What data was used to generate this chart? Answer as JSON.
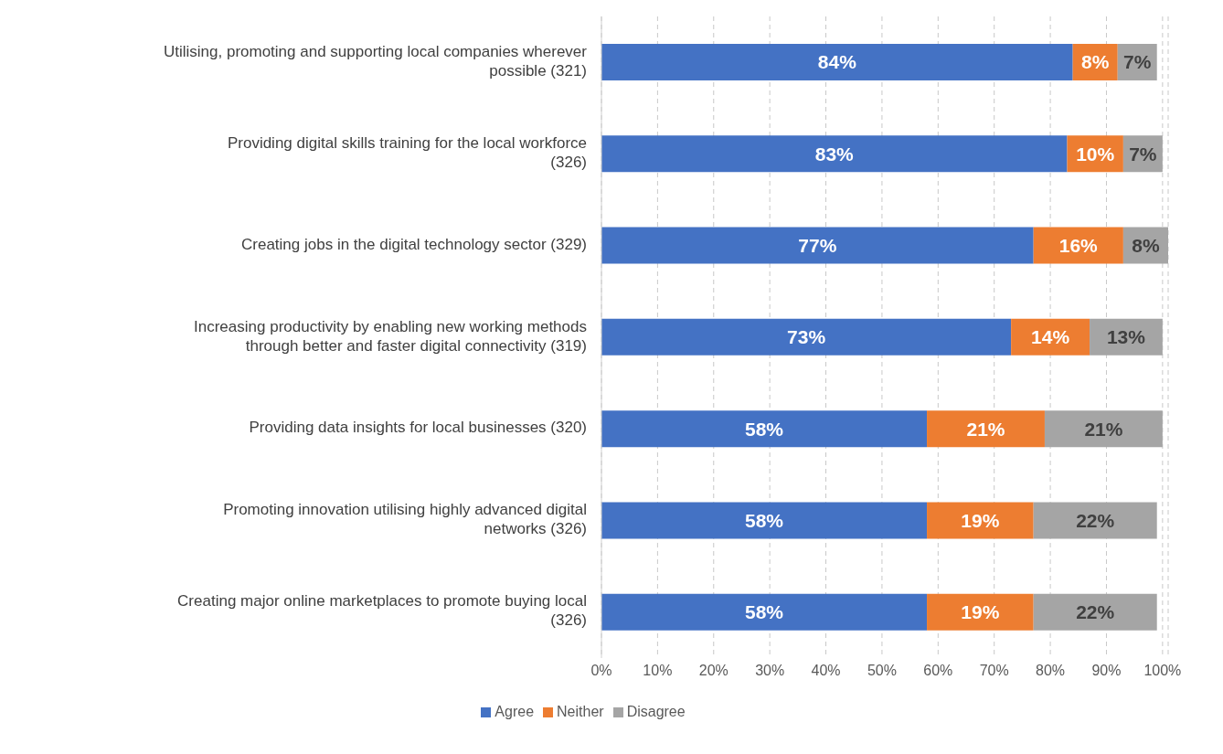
{
  "chart_data": {
    "type": "bar",
    "orientation": "horizontal",
    "stacked": true,
    "categories": [
      "Utilising, promoting and supporting local companies wherever possible (321)",
      "Providing digital skills training for the local workforce (326)",
      "Creating jobs in the digital technology sector (329)",
      "Increasing productivity by enabling new working methods through better and faster digital connectivity (319)",
      "Providing data insights for local businesses (320)",
      "Promoting innovation utilising highly advanced digital networks (326)",
      "Creating major online marketplaces to promote buying local (326)"
    ],
    "series": [
      {
        "name": "Agree",
        "color": "#4472c4",
        "values": [
          84,
          83,
          77,
          73,
          58,
          58,
          58
        ],
        "value_labels": [
          "84%",
          "83%",
          "77%",
          "73%",
          "58%",
          "58%",
          "58%"
        ]
      },
      {
        "name": "Neither",
        "color": "#ed7d31",
        "values": [
          8,
          10,
          16,
          14,
          21,
          19,
          19
        ],
        "value_labels": [
          "8%",
          "10%",
          "16%",
          "14%",
          "21%",
          "19%",
          "19%"
        ]
      },
      {
        "name": "Disagree",
        "color": "#a5a5a5",
        "values": [
          7,
          7,
          8,
          13,
          21,
          22,
          22
        ],
        "value_labels": [
          "7%",
          "7%",
          "8%",
          "13%",
          "21%",
          "22%",
          "22%"
        ]
      }
    ],
    "xlim": [
      0,
      101
    ],
    "xticks": [
      {
        "value": 0,
        "label": "0%"
      },
      {
        "value": 10,
        "label": "10%"
      },
      {
        "value": 20,
        "label": "20%"
      },
      {
        "value": 30,
        "label": "30%"
      },
      {
        "value": 40,
        "label": "40%"
      },
      {
        "value": 50,
        "label": "50%"
      },
      {
        "value": 60,
        "label": "60%"
      },
      {
        "value": 70,
        "label": "70%"
      },
      {
        "value": 80,
        "label": "80%"
      },
      {
        "value": 90,
        "label": "90%"
      },
      {
        "value": 100,
        "label": "100%"
      }
    ],
    "grid": "x",
    "legend": "bottom"
  }
}
